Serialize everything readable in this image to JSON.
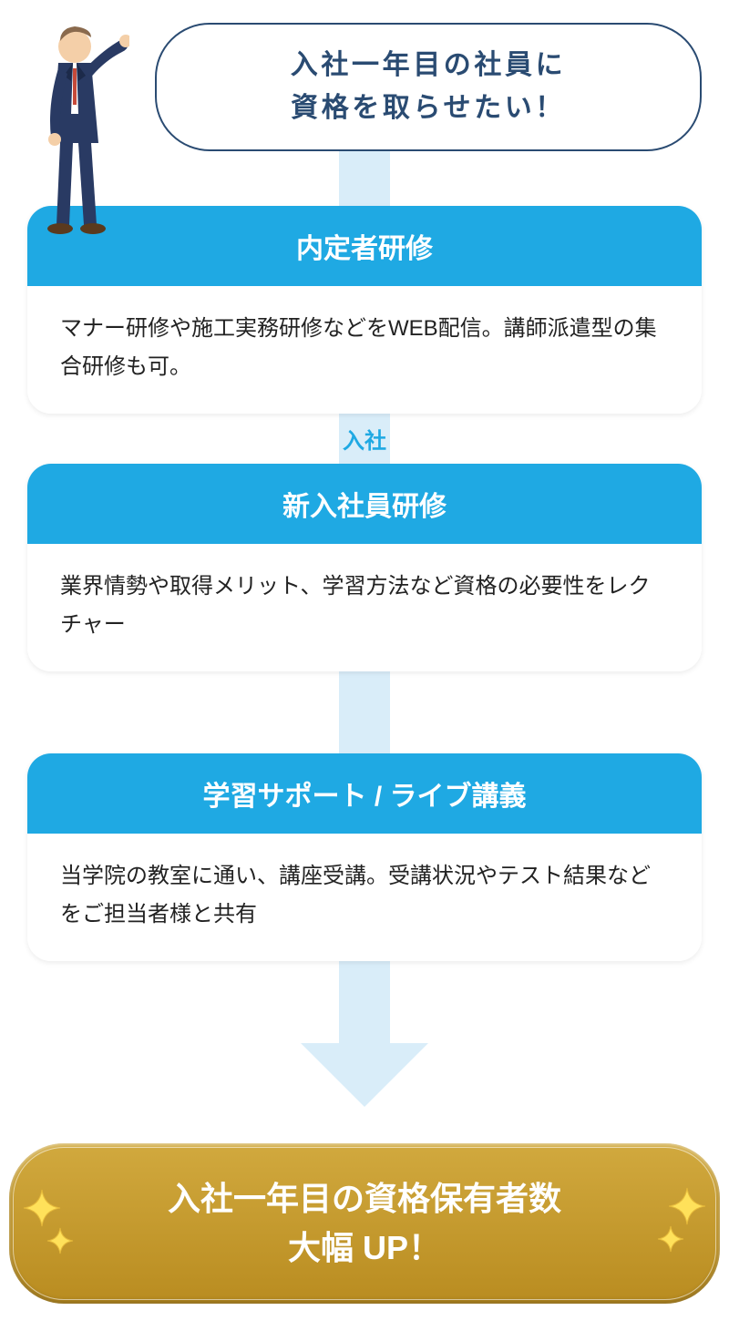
{
  "colors": {
    "accent_blue": "#1fa9e3",
    "dark_navy": "#2a4b72",
    "arrow_fill": "#d9edf9",
    "gold_top": "#d1a93e",
    "gold_bottom": "#b98c20",
    "sparkle": "#ffe15a",
    "body_text": "#222222"
  },
  "typography": {
    "bubble_fontsize": 30,
    "card_title_fontsize": 30,
    "card_body_fontsize": 24,
    "arrow_label_fontsize": 24,
    "result_fontsize": 36
  },
  "bubble": {
    "line1": "入社一年目の社員に",
    "line2": "資格を取らせたい！"
  },
  "arrow_heights": {
    "seg1": 60,
    "seg2": 55,
    "seg3": 90,
    "seg4": 90
  },
  "inter_label": "入社",
  "stages": [
    {
      "title": "内定者研修",
      "body": "マナー研修や施工実務研修などをWEB配信。講師派遣型の集合研修も可。"
    },
    {
      "title": "新入社員研修",
      "body": "業界情勢や取得メリット、学習方法など資格の必要性をレクチャー"
    },
    {
      "title": "学習サポート / ライブ講義",
      "body": "当学院の教室に通い、講座受講。受講状況やテスト結果などをご担当者様と共有"
    }
  ],
  "result": {
    "line1": "入社一年目の資格保有者数",
    "line2": "大幅 UP！"
  }
}
